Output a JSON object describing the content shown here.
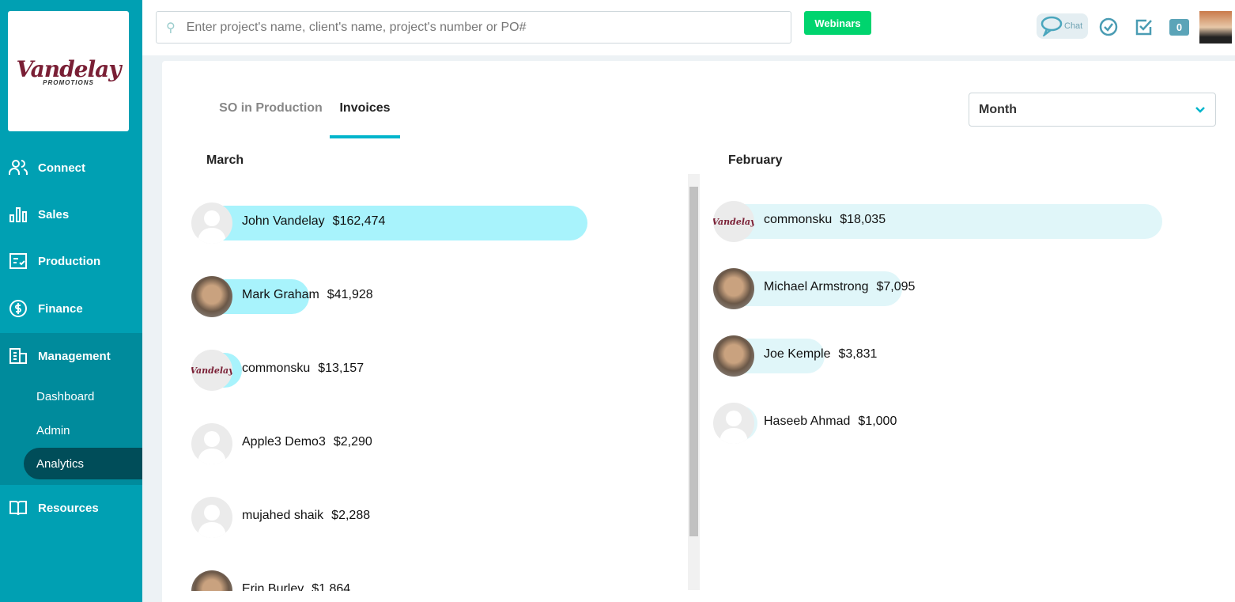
{
  "brand": {
    "logo_text": "Vandelay",
    "logo_sub": "PROMOTIONS"
  },
  "sidebar": {
    "items": [
      {
        "label": "Connect",
        "icon": "users-icon"
      },
      {
        "label": "Sales",
        "icon": "bar-chart-icon"
      },
      {
        "label": "Production",
        "icon": "checklist-icon"
      },
      {
        "label": "Finance",
        "icon": "dollar-icon"
      },
      {
        "label": "Management",
        "icon": "building-icon"
      },
      {
        "label": "Resources",
        "icon": "book-icon"
      }
    ],
    "management_sub": [
      {
        "label": "Dashboard"
      },
      {
        "label": "Admin"
      },
      {
        "label": "Analytics",
        "active": true
      }
    ]
  },
  "topbar": {
    "search_placeholder": "Enter project's name, client's name, project's number or PO#",
    "webinars": "Webinars",
    "chat": "Chat",
    "notification_count": "0"
  },
  "tabs": [
    {
      "label": "SO in Production"
    },
    {
      "label": "Invoices",
      "active": true
    }
  ],
  "period_select": "Month",
  "colors": {
    "sidebar": "#00a0b3",
    "accent": "#00b5cc",
    "march_bar": "#a8f3fc",
    "feb_bar": "#e0f6f9"
  },
  "columns": [
    {
      "title": "March",
      "rows": [
        {
          "name": "John Vandelay",
          "amount": "$162,474",
          "value": 162474,
          "avatar": "default"
        },
        {
          "name": "Mark Graham",
          "amount": "$41,928",
          "value": 41928,
          "avatar": "photo"
        },
        {
          "name": "commonsku",
          "amount": "$13,157",
          "value": 13157,
          "avatar": "logo"
        },
        {
          "name": "Apple3 Demo3",
          "amount": "$2,290",
          "value": 2290,
          "avatar": "default"
        },
        {
          "name": "mujahed shaik",
          "amount": "$2,288",
          "value": 2288,
          "avatar": "default"
        },
        {
          "name": "Erin Burley",
          "amount": "$1,864",
          "value": 1864,
          "avatar": "photo"
        }
      ]
    },
    {
      "title": "February",
      "rows": [
        {
          "name": "commonsku",
          "amount": "$18,035",
          "value": 18035,
          "avatar": "logo"
        },
        {
          "name": "Michael Armstrong",
          "amount": "$7,095",
          "value": 7095,
          "avatar": "photo"
        },
        {
          "name": "Joe Kemple",
          "amount": "$3,831",
          "value": 3831,
          "avatar": "photo"
        },
        {
          "name": "Haseeb Ahmad",
          "amount": "$1,000",
          "value": 1000,
          "avatar": "default"
        }
      ]
    }
  ]
}
